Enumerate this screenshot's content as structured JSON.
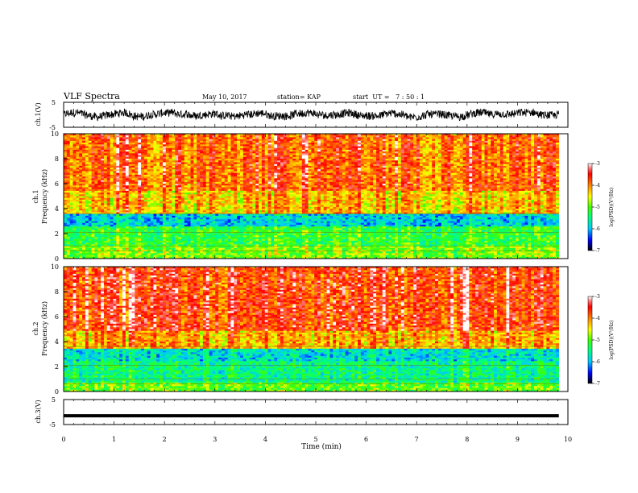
{
  "header": {
    "title": "VLF Spectra",
    "date": "May 10, 2017",
    "station": "station= KAP",
    "start": "start  UT =   7 : 50 : 1"
  },
  "colorbar_colors": [
    "#000000",
    "#0000ff",
    "#00c8ff",
    "#00ff80",
    "#40ff00",
    "#ffff00",
    "#ff8000",
    "#ff0000",
    "#ff8080",
    "#ffffff"
  ],
  "chart_data": [
    {
      "type": "line",
      "name": "ch1-waveform",
      "ylabel": "ch.1(V)",
      "ylim": [
        -5,
        5
      ],
      "yticks": [
        "5",
        "-5"
      ],
      "xlim": [
        0,
        10
      ],
      "note_series": "noisy waveform roughly between -3 and 3 V across 0 to 9.8 min"
    },
    {
      "type": "heatmap",
      "name": "ch1-spectrogram",
      "ylabel": "ch.1\nFrequency (kHz)",
      "ylabel_line1": "ch.1",
      "ylabel_line2": "Frequency (kHz)",
      "ylim": [
        0,
        10
      ],
      "yticks": [
        "0",
        "2",
        "4",
        "6",
        "8",
        "10"
      ],
      "xlim": [
        0,
        10
      ],
      "data_xmax": 9.82,
      "colorbar": {
        "label": "log(PSD)(V²/Hz)",
        "ticks": [
          "-3",
          "-4",
          "-5",
          "-6",
          "-7"
        ],
        "range": [
          -7,
          -3
        ]
      },
      "bands": [
        {
          "from": 0.0,
          "to": 1.0,
          "level": -4.9
        },
        {
          "from": 1.0,
          "to": 2.6,
          "level": -5.2
        },
        {
          "from": 2.6,
          "to": 3.6,
          "level": -5.9
        },
        {
          "from": 3.6,
          "to": 5.5,
          "level": -4.3
        },
        {
          "from": 5.5,
          "to": 10.0,
          "level": -3.9
        }
      ]
    },
    {
      "type": "heatmap",
      "name": "ch2-spectrogram",
      "ylabel_line1": "ch.2",
      "ylabel_line2": "Frequency (kHz)",
      "ylim": [
        0,
        10
      ],
      "yticks": [
        "0",
        "2",
        "4",
        "6",
        "8",
        "10"
      ],
      "xlim": [
        0,
        10
      ],
      "data_xmax": 9.82,
      "colorbar": {
        "label": "log(PSD)(V²/Hz)",
        "ticks": [
          "-3",
          "-4",
          "-5",
          "-6",
          "-7"
        ],
        "range": [
          -7,
          -3
        ]
      },
      "bands": [
        {
          "from": 0.0,
          "to": 0.7,
          "level": -5.0
        },
        {
          "from": 0.7,
          "to": 2.4,
          "level": -5.5
        },
        {
          "from": 2.4,
          "to": 3.4,
          "level": -5.8
        },
        {
          "from": 3.4,
          "to": 4.8,
          "level": -4.2
        },
        {
          "from": 4.8,
          "to": 10.0,
          "level": -3.7
        }
      ]
    },
    {
      "type": "line",
      "name": "ch3-waveform",
      "ylabel": "ch.3(V)",
      "ylim": [
        -5,
        5
      ],
      "yticks": [
        "5",
        "-5"
      ],
      "xlim": [
        0,
        10
      ],
      "constant_value": -1.5
    }
  ],
  "xaxis": {
    "label": "Time (min)",
    "ticks": [
      "0",
      "1",
      "2",
      "3",
      "4",
      "5",
      "6",
      "7",
      "8",
      "9",
      "10"
    ]
  }
}
